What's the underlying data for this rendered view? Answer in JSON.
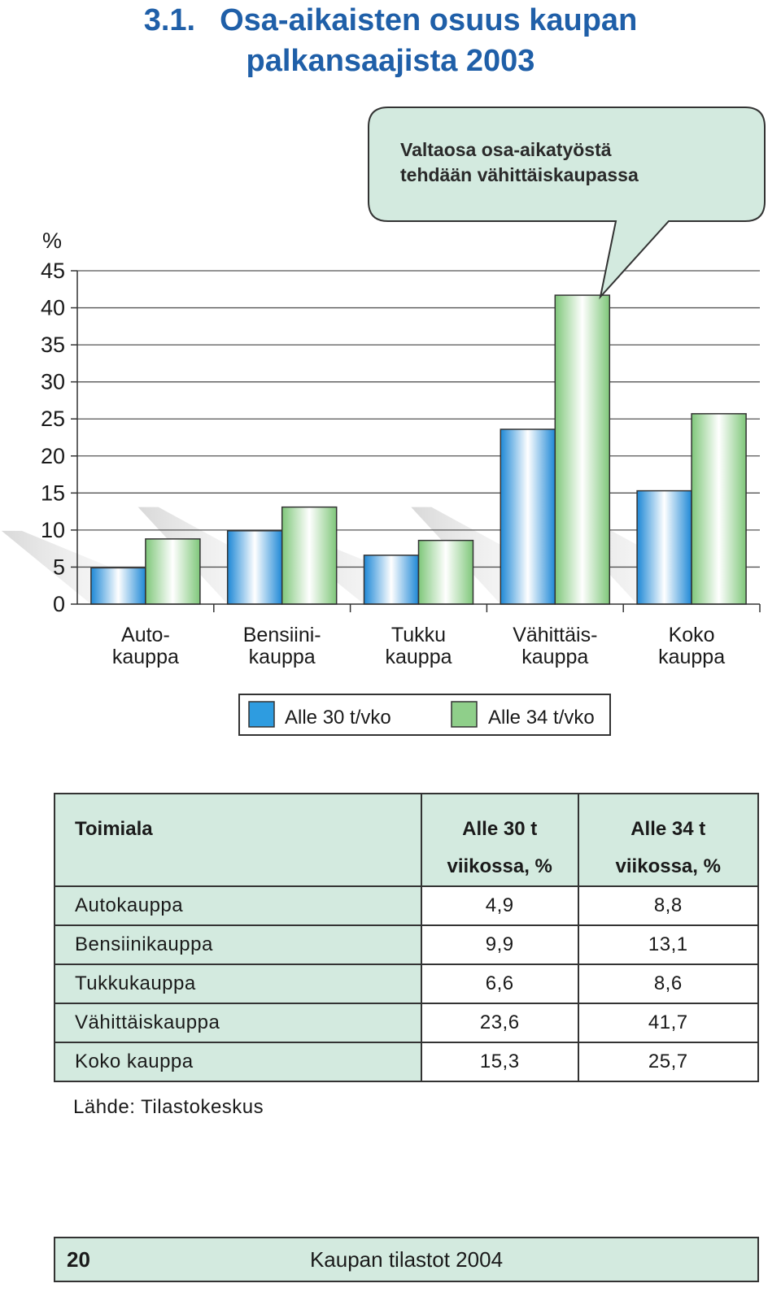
{
  "title": {
    "number": "3.1.",
    "line1": "Osa-aikaisten osuus kaupan",
    "line2": "palkansaajista 2003"
  },
  "callout": {
    "line1": "Valtaosa osa-aikatyöstä",
    "line2": "tehdään vähittäiskaupassa"
  },
  "chart_data": {
    "type": "bar",
    "ylabel": "%",
    "ylim": [
      0,
      45
    ],
    "yticks": [
      "0",
      "5",
      "10",
      "15",
      "20",
      "25",
      "30",
      "35",
      "40",
      "45"
    ],
    "categories": [
      [
        "Auto-",
        "kauppa"
      ],
      [
        "Bensiini-",
        "kauppa"
      ],
      [
        "Tukku",
        "kauppa"
      ],
      [
        "Vähittäis-",
        "kauppa"
      ],
      [
        "Koko",
        "kauppa"
      ]
    ],
    "series": [
      {
        "name": "Alle 30 t/vko",
        "values": [
          4.9,
          9.9,
          6.6,
          23.6,
          15.3
        ],
        "color": "#2e9ce0"
      },
      {
        "name": "Alle 34 t/vko",
        "values": [
          8.8,
          13.1,
          8.6,
          41.7,
          25.7
        ],
        "color": "#8fcf8a"
      }
    ],
    "grid": true,
    "legend_position": "bottom"
  },
  "table": {
    "headers": [
      {
        "line1": "Toimiala",
        "line2": ""
      },
      {
        "line1": "Alle 30 t",
        "line2": "viikossa, %"
      },
      {
        "line1": "Alle 34 t",
        "line2": "viikossa, %"
      }
    ],
    "rows": [
      {
        "name": "Autokauppa",
        "a": "4,9",
        "b": "8,8"
      },
      {
        "name": "Bensiinikauppa",
        "a": "9,9",
        "b": "13,1"
      },
      {
        "name": "Tukkukauppa",
        "a": "6,6",
        "b": "8,6"
      },
      {
        "name": "Vähittäiskauppa",
        "a": "23,6",
        "b": "41,7"
      },
      {
        "name": "Koko  kauppa",
        "a": "15,3",
        "b": "25,7"
      }
    ]
  },
  "source": "Lähde:  Tilastokeskus",
  "footer": {
    "page": "20",
    "publication": "Kaupan tilastot 2004"
  }
}
